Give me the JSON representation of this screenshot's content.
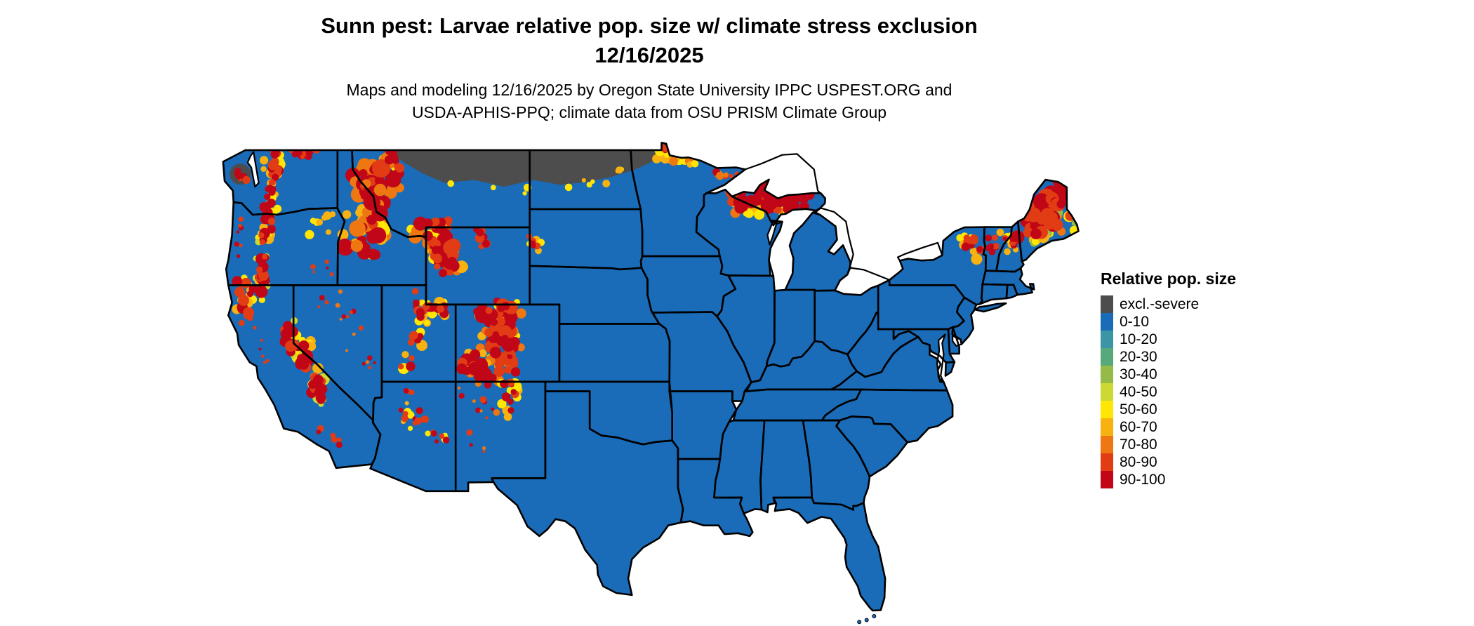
{
  "header": {
    "title_line1": "Sunn pest: Larvae relative pop. size w/ climate stress exclusion",
    "title_line2": "12/16/2025",
    "subtitle_line1": "Maps and modeling 12/16/2025 by Oregon State University IPPC USPEST.ORG and",
    "subtitle_line2": "USDA-APHIS-PPQ; climate data from OSU PRISM Climate Group"
  },
  "legend": {
    "title": "Relative pop. size",
    "items": [
      {
        "label": "excl.-severe",
        "color": "#4d4d4d"
      },
      {
        "label": "0-10",
        "color": "#1a6cb8"
      },
      {
        "label": "10-20",
        "color": "#3b95a5"
      },
      {
        "label": "20-30",
        "color": "#55a97b"
      },
      {
        "label": "30-40",
        "color": "#95ba48"
      },
      {
        "label": "40-50",
        "color": "#ccd932"
      },
      {
        "label": "50-60",
        "color": "#ffe605"
      },
      {
        "label": "60-70",
        "color": "#f7b212"
      },
      {
        "label": "70-80",
        "color": "#ee7711"
      },
      {
        "label": "80-90",
        "color": "#e23c15"
      },
      {
        "label": "90-100",
        "color": "#c00617"
      }
    ]
  },
  "map": {
    "background": "#ffffff",
    "water_fill": "#ffffff",
    "border_color": "#000000"
  }
}
